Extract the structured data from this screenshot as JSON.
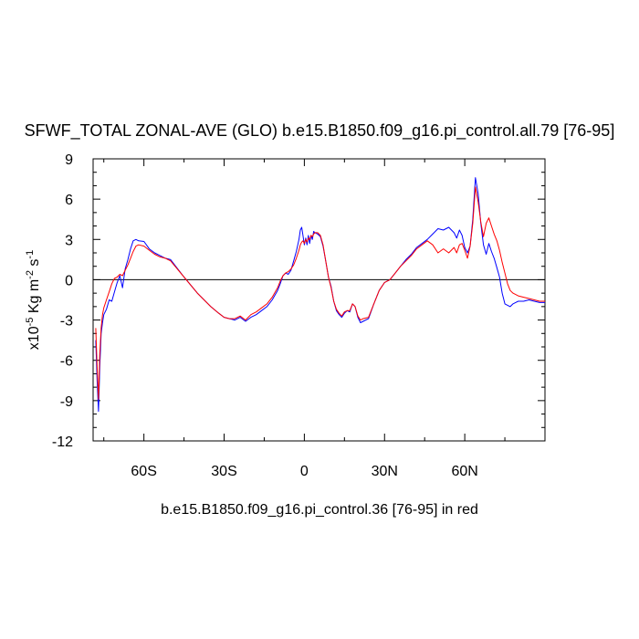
{
  "chart_data": {
    "type": "line",
    "title": "SFWF_TOTAL ZONAL-AVE (GLO) b.e15.B1850.f09_g16.pi_control.all.79 [76-95]",
    "xlabel": "b.e15.B1850.f09_g16.pi_control.36 [76-95] in red",
    "ylabel": {
      "prefix": "x10",
      "exp": "-5",
      "unit": " Kg m",
      "exp2": "-2",
      "unit2": " s",
      "exp3": "-1"
    },
    "xlim": [
      -79,
      90
    ],
    "ylim": [
      -12,
      9
    ],
    "xticks": [
      {
        "value": -60,
        "label": "60S"
      },
      {
        "value": -30,
        "label": "30S"
      },
      {
        "value": 0,
        "label": "0"
      },
      {
        "value": 30,
        "label": "30N"
      },
      {
        "value": 60,
        "label": "60N"
      }
    ],
    "yticks": [
      {
        "value": 9,
        "label": "9"
      },
      {
        "value": 6,
        "label": "6"
      },
      {
        "value": 3,
        "label": "3"
      },
      {
        "value": 0,
        "label": "0"
      },
      {
        "value": -3,
        "label": "-3"
      },
      {
        "value": -6,
        "label": "-6"
      },
      {
        "value": -9,
        "label": "-9"
      },
      {
        "value": -12,
        "label": "-12"
      }
    ],
    "zero_line": true,
    "grid": false,
    "series": [
      {
        "color": "#0000ff",
        "x": [
          -78,
          -77.5,
          -77,
          -76.5,
          -76,
          -75.5,
          -75,
          -74,
          -73,
          -72,
          -71,
          -70,
          -69,
          -68,
          -67,
          -66,
          -65,
          -64,
          -63,
          -62,
          -60,
          -58,
          -56,
          -54,
          -52,
          -50,
          -45,
          -40,
          -35,
          -32,
          -30,
          -28,
          -26,
          -24,
          -22,
          -20,
          -18,
          -16,
          -14,
          -12,
          -10,
          -9,
          -8,
          -7,
          -6,
          -5,
          -4,
          -3,
          -2,
          -1.5,
          -1,
          -0.5,
          0,
          0.5,
          1,
          1.5,
          2,
          2.5,
          3,
          3.5,
          4,
          5,
          6,
          7,
          8,
          9,
          10,
          11,
          12,
          13,
          14,
          15,
          16,
          17,
          18,
          19,
          20,
          21,
          22,
          24,
          26,
          28,
          30,
          32,
          34,
          36,
          38,
          40,
          42,
          44,
          46,
          48,
          50,
          52,
          54,
          56,
          57,
          58,
          59,
          60,
          61,
          62,
          63,
          64,
          65,
          66,
          67,
          68,
          69,
          70,
          71,
          72,
          73,
          74,
          75,
          76,
          77,
          78,
          79,
          80,
          82,
          84,
          86,
          88,
          90
        ],
        "y": [
          -4.5,
          -7.5,
          -9.8,
          -6.5,
          -4.0,
          -3.2,
          -2.6,
          -2.2,
          -1.5,
          -1.6,
          -0.9,
          -0.2,
          0.3,
          -0.6,
          0.8,
          1.5,
          2.3,
          2.9,
          3.0,
          2.9,
          2.85,
          2.3,
          2.0,
          1.8,
          1.6,
          1.5,
          0.2,
          -1.0,
          -2.0,
          -2.5,
          -2.8,
          -2.9,
          -3.0,
          -2.8,
          -3.1,
          -2.8,
          -2.6,
          -2.3,
          -2.0,
          -1.5,
          -0.8,
          -0.3,
          0.3,
          0.5,
          0.4,
          0.7,
          1.4,
          2.1,
          3.0,
          3.7,
          3.9,
          3.3,
          2.6,
          3.1,
          2.6,
          3.3,
          2.7,
          3.3,
          3.0,
          3.6,
          3.5,
          3.4,
          3.2,
          2.5,
          1.4,
          0.2,
          -0.5,
          -1.6,
          -2.3,
          -2.6,
          -2.8,
          -2.5,
          -2.3,
          -2.4,
          -1.8,
          -2.0,
          -2.8,
          -3.2,
          -3.1,
          -2.9,
          -1.8,
          -0.8,
          -0.2,
          0.0,
          0.5,
          1.0,
          1.5,
          1.9,
          2.4,
          2.7,
          3.0,
          3.4,
          3.8,
          3.7,
          3.9,
          3.5,
          3.1,
          3.7,
          3.3,
          2.4,
          2.0,
          2.5,
          4.5,
          7.6,
          6.4,
          4.2,
          2.6,
          1.9,
          2.7,
          2.1,
          1.6,
          0.9,
          0.2,
          -1.0,
          -1.8,
          -1.9,
          -2.0,
          -1.8,
          -1.7,
          -1.6,
          -1.6,
          -1.5,
          -1.6,
          -1.7,
          -1.7
        ]
      },
      {
        "color": "#ff0000",
        "x": [
          -78,
          -77.5,
          -77,
          -76.5,
          -76,
          -75.5,
          -75,
          -74,
          -73,
          -72,
          -71,
          -70,
          -69,
          -68,
          -67,
          -66,
          -65,
          -64,
          -63,
          -62,
          -60,
          -58,
          -56,
          -54,
          -52,
          -50,
          -45,
          -40,
          -35,
          -32,
          -30,
          -28,
          -26,
          -24,
          -22,
          -20,
          -18,
          -16,
          -14,
          -12,
          -10,
          -9,
          -8,
          -7,
          -6,
          -5,
          -4,
          -3,
          -2,
          -1.5,
          -1,
          -0.5,
          0,
          0.5,
          1,
          1.5,
          2,
          2.5,
          3,
          3.5,
          4,
          5,
          6,
          7,
          8,
          9,
          10,
          11,
          12,
          13,
          14,
          15,
          16,
          17,
          18,
          19,
          20,
          21,
          22,
          24,
          26,
          28,
          30,
          32,
          34,
          36,
          38,
          40,
          42,
          44,
          46,
          48,
          50,
          52,
          54,
          56,
          57,
          58,
          59,
          60,
          61,
          62,
          63,
          64,
          65,
          66,
          67,
          68,
          69,
          70,
          71,
          72,
          73,
          74,
          75,
          76,
          77,
          78,
          79,
          80,
          82,
          84,
          86,
          88,
          90
        ],
        "y": [
          -3.6,
          -6.5,
          -8.9,
          -5.5,
          -3.6,
          -2.6,
          -2.1,
          -1.5,
          -0.9,
          -0.3,
          0.1,
          0.2,
          0.4,
          0.3,
          0.7,
          1.1,
          1.6,
          2.1,
          2.5,
          2.6,
          2.5,
          2.2,
          1.9,
          1.7,
          1.6,
          1.4,
          0.2,
          -1.0,
          -2.0,
          -2.5,
          -2.8,
          -2.9,
          -2.9,
          -2.7,
          -3.0,
          -2.6,
          -2.4,
          -2.1,
          -1.8,
          -1.3,
          -0.6,
          -0.1,
          0.3,
          0.5,
          0.6,
          0.8,
          1.1,
          1.6,
          2.2,
          2.6,
          2.8,
          2.9,
          2.7,
          3.0,
          2.8,
          3.1,
          3.0,
          3.3,
          3.2,
          3.4,
          3.5,
          3.5,
          3.3,
          2.6,
          1.4,
          0.2,
          -0.6,
          -1.6,
          -2.2,
          -2.5,
          -2.7,
          -2.4,
          -2.3,
          -2.3,
          -1.8,
          -2.0,
          -2.7,
          -3.0,
          -2.9,
          -2.8,
          -1.8,
          -0.8,
          -0.2,
          0.0,
          0.5,
          1.0,
          1.4,
          1.8,
          2.3,
          2.6,
          2.9,
          2.6,
          2.0,
          2.3,
          2.0,
          2.4,
          2.0,
          2.6,
          2.7,
          2.2,
          1.6,
          2.5,
          4.2,
          6.9,
          5.8,
          4.3,
          3.2,
          4.2,
          4.6,
          4.0,
          3.4,
          2.9,
          2.2,
          1.3,
          0.5,
          -0.3,
          -0.8,
          -1.0,
          -1.1,
          -1.2,
          -1.3,
          -1.4,
          -1.5,
          -1.6,
          -1.6
        ]
      }
    ]
  }
}
